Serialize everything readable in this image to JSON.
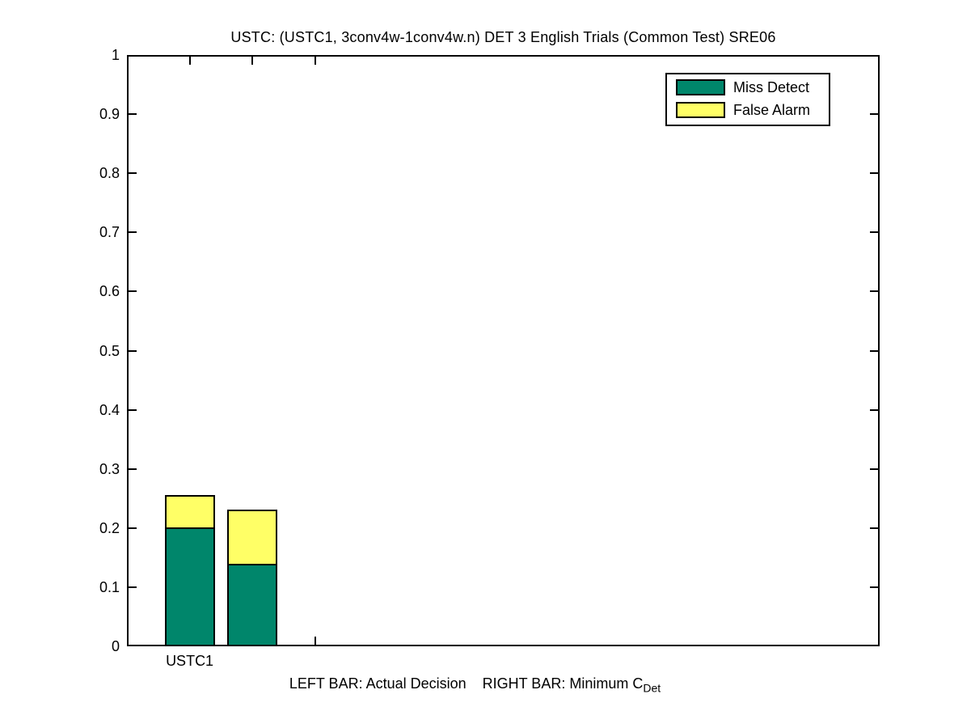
{
  "title": "USTC: (USTC1, 3conv4w-1conv4w.n) DET 3 English Trials (Common Test) SRE06",
  "xlabel": {
    "left": "LEFT BAR: Actual Decision",
    "right": "RIGHT BAR: Minimum C",
    "subscript": "Det"
  },
  "legend": {
    "position": "top-right",
    "items": [
      {
        "label": "Miss Detect",
        "color": "#00866B"
      },
      {
        "label": "False Alarm",
        "color": "#FFFF66"
      }
    ]
  },
  "chart_data": {
    "type": "bar",
    "stacked": true,
    "title": "USTC: (USTC1, 3conv4w-1conv4w.n) DET 3 English Trials (Common Test) SRE06",
    "xlabel": "LEFT BAR: Actual Decision      RIGHT BAR: Minimum C_Det",
    "categories": [
      "USTC1"
    ],
    "ylim": [
      0,
      1
    ],
    "xlim": [
      0.5,
      6.5
    ],
    "grid": false,
    "legend_position": "top-right",
    "bar_width": 0.4,
    "ytick_values": [
      0,
      0.1,
      0.2,
      0.3,
      0.4,
      0.5,
      0.6,
      0.7,
      0.8,
      0.9,
      1
    ],
    "ytick_labels": [
      "0",
      "0.1",
      "0.2",
      "0.3",
      "0.4",
      "0.5",
      "0.6",
      "0.7",
      "0.8",
      "0.9",
      "1"
    ],
    "xtick_values": [
      1,
      1.5,
      2
    ],
    "xtick_labels": [
      "USTC1",
      "",
      ""
    ],
    "series": [
      {
        "name": "Miss Detect",
        "color": "#00866B"
      },
      {
        "name": "False Alarm",
        "color": "#FFFF66"
      }
    ],
    "bars": [
      {
        "x": 1.0,
        "category": "USTC1",
        "label": "Actual Decision",
        "segments": [
          {
            "series": "Miss Detect",
            "value": 0.201
          },
          {
            "series": "False Alarm",
            "value": 0.055
          }
        ],
        "total": 0.256
      },
      {
        "x": 1.5,
        "category": "USTC1",
        "label": "Minimum CDet",
        "segments": [
          {
            "series": "Miss Detect",
            "value": 0.14
          },
          {
            "series": "False Alarm",
            "value": 0.091
          }
        ],
        "total": 0.231
      }
    ]
  }
}
